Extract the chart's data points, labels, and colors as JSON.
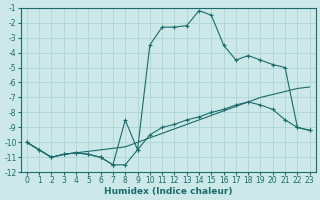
{
  "xlabel": "Humidex (Indice chaleur)",
  "bg_color": "#cde8e8",
  "grid_color": "#b0d8d8",
  "line_color": "#1a6b6b",
  "xlim": [
    -0.5,
    23.5
  ],
  "ylim": [
    -12,
    -1
  ],
  "xticks": [
    0,
    1,
    2,
    3,
    4,
    5,
    6,
    7,
    8,
    9,
    10,
    11,
    12,
    13,
    14,
    15,
    16,
    17,
    18,
    19,
    20,
    21,
    22,
    23
  ],
  "yticks": [
    -1,
    -2,
    -3,
    -4,
    -5,
    -6,
    -7,
    -8,
    -9,
    -10,
    -11,
    -12
  ],
  "series": [
    {
      "x": [
        0,
        1,
        2,
        3,
        4,
        5,
        6,
        7,
        8,
        9,
        10,
        11,
        12,
        13,
        14,
        15,
        16,
        17,
        18,
        19,
        20,
        21,
        22,
        23
      ],
      "y": [
        -10,
        -10.5,
        -11,
        -10.8,
        -10.7,
        -10.6,
        -10.5,
        -10.4,
        -10.3,
        -10.0,
        -9.7,
        -9.4,
        -9.1,
        -8.8,
        -8.5,
        -8.2,
        -7.9,
        -7.6,
        -7.3,
        -7.0,
        -6.8,
        -6.6,
        -6.4,
        -6.3
      ],
      "marker": false,
      "linestyle": "solid"
    },
    {
      "x": [
        0,
        1,
        2,
        3,
        4,
        5,
        6,
        7,
        8,
        9,
        10,
        11,
        12,
        13,
        14,
        15,
        16,
        17,
        18,
        19,
        20,
        21,
        22,
        23
      ],
      "y": [
        -10,
        -10.5,
        -11,
        -10.8,
        -10.7,
        -10.8,
        -11,
        -11.5,
        -8.5,
        -10.5,
        -9.5,
        -9.0,
        -8.8,
        -8.5,
        -8.3,
        -8.0,
        -7.8,
        -7.5,
        -7.3,
        -7.5,
        -7.8,
        -8.5,
        -9.0,
        -9.2
      ],
      "marker": true,
      "linestyle": "solid"
    },
    {
      "x": [
        0,
        1,
        2,
        3,
        4,
        5,
        6,
        7,
        8,
        9,
        10,
        11,
        12,
        13,
        14,
        15,
        16,
        17,
        18,
        19,
        20,
        21,
        22,
        23
      ],
      "y": [
        -10,
        -10.5,
        -11,
        -10.8,
        -10.7,
        -10.8,
        -11,
        -11.5,
        -11.5,
        -10.5,
        -3.5,
        -2.3,
        -2.3,
        -2.2,
        -1.2,
        -1.5,
        -3.5,
        -4.5,
        -4.2,
        -4.5,
        -4.8,
        -5.0,
        -9.0,
        -9.2
      ],
      "marker": true,
      "linestyle": "solid"
    }
  ]
}
